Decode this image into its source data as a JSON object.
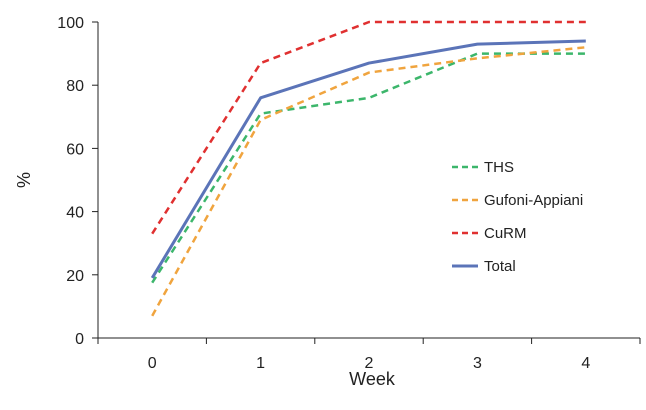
{
  "chart_data": {
    "type": "line",
    "title": "",
    "xlabel": "Week",
    "ylabel": "%",
    "x": [
      0,
      1,
      2,
      3,
      4
    ],
    "xticks": [
      "0",
      "1",
      "2",
      "3",
      "4"
    ],
    "yticks": [
      "0",
      "20",
      "40",
      "60",
      "80",
      "100"
    ],
    "ylim": [
      0,
      100
    ],
    "grid": false,
    "legend_position": "right",
    "series": [
      {
        "name": "THS",
        "values": [
          17.5,
          71,
          76,
          90,
          90
        ],
        "color": "#3cb66b",
        "dash": "dashed"
      },
      {
        "name": "Gufoni-Appiani",
        "values": [
          7,
          69,
          84,
          88.5,
          92
        ],
        "color": "#f0a43e",
        "dash": "dashed"
      },
      {
        "name": "CuRM",
        "values": [
          33,
          87,
          100,
          100,
          100
        ],
        "color": "#e03030",
        "dash": "dashed"
      },
      {
        "name": "Total",
        "values": [
          19,
          76,
          87,
          93,
          94
        ],
        "color": "#5b74b8",
        "dash": "solid"
      }
    ]
  }
}
